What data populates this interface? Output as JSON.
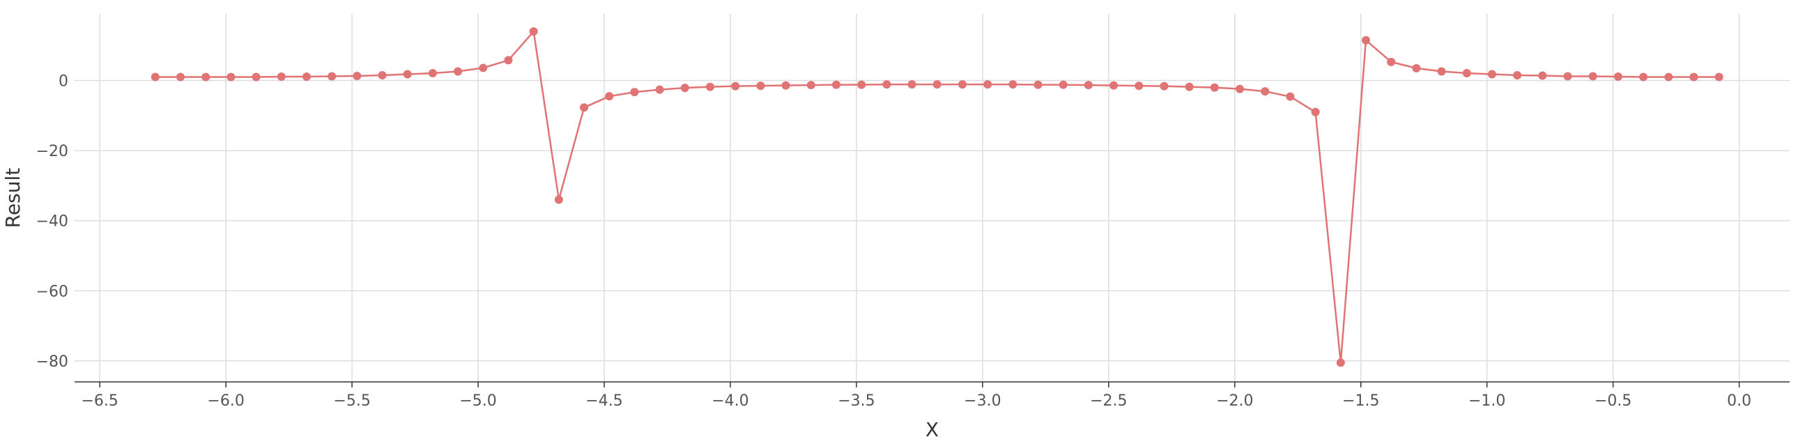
{
  "chart_data": {
    "type": "line",
    "title": "",
    "xlabel": "X",
    "ylabel": "Result",
    "xlim": [
      -6.6,
      0.2
    ],
    "ylim": [
      -86,
      19
    ],
    "xticks": [
      -6.5,
      -6.0,
      -5.5,
      -5.0,
      -4.5,
      -4.0,
      -3.5,
      -3.0,
      -2.5,
      -2.0,
      -1.5,
      -1.0,
      -0.5,
      0.0
    ],
    "xtick_labels": [
      "−6.5",
      "−6.0",
      "−5.5",
      "−5.0",
      "−4.5",
      "−4.0",
      "−3.5",
      "−3.0",
      "−2.5",
      "−2.0",
      "−1.5",
      "−1.0",
      "−0.5",
      "0.0"
    ],
    "yticks": [
      0,
      -20,
      -40,
      -60,
      -80
    ],
    "ytick_labels": [
      "0",
      "−20",
      "−40",
      "−60",
      "−80"
    ],
    "grid": true,
    "color": "#e07374",
    "series": [
      {
        "x": [
          -6.28,
          -6.18,
          -6.08,
          -5.98,
          -5.88,
          -5.78,
          -5.68,
          -5.58,
          -5.48,
          -5.38,
          -5.28,
          -5.18,
          -5.08,
          -4.98,
          -4.88,
          -4.78,
          -4.68,
          -4.58,
          -4.48,
          -4.38,
          -4.28,
          -4.18,
          -4.08,
          -3.98,
          -3.88,
          -3.78,
          -3.68,
          -3.58,
          -3.48,
          -3.38,
          -3.28,
          -3.18,
          -3.08,
          -2.98,
          -2.88,
          -2.78,
          -2.68,
          -2.58,
          -2.48,
          -2.38,
          -2.28,
          -2.18,
          -2.08,
          -1.98,
          -1.88,
          -1.78,
          -1.68,
          -1.58,
          -1.48,
          -1.38,
          -1.28,
          -1.18,
          -1.08,
          -0.98,
          -0.88,
          -0.78,
          -0.68,
          -0.58,
          -0.48,
          -0.38,
          -0.28,
          -0.18,
          -0.08
        ],
        "values": [
          1.0,
          1.0,
          1.0,
          1.0,
          1.0,
          1.1,
          1.1,
          1.2,
          1.3,
          1.5,
          1.8,
          2.1,
          2.6,
          3.6,
          5.8,
          14.0,
          -34.0,
          -7.7,
          -4.5,
          -3.3,
          -2.6,
          -2.1,
          -1.8,
          -1.6,
          -1.5,
          -1.4,
          -1.3,
          -1.2,
          -1.2,
          -1.1,
          -1.1,
          -1.1,
          -1.1,
          -1.1,
          -1.1,
          -1.2,
          -1.2,
          -1.3,
          -1.4,
          -1.5,
          -1.6,
          -1.8,
          -2.0,
          -2.4,
          -3.1,
          -4.6,
          -9.0,
          -80.5,
          11.5,
          5.3,
          3.5,
          2.6,
          2.1,
          1.8,
          1.5,
          1.4,
          1.2,
          1.2,
          1.1,
          1.0,
          1.0,
          1.0,
          1.0
        ]
      }
    ]
  }
}
